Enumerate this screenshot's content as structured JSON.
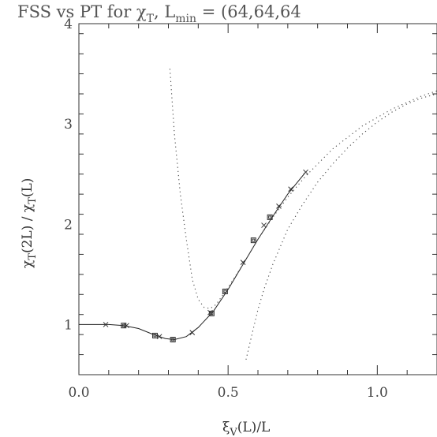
{
  "chart_data": {
    "type": "scatter",
    "title": "FSS vs PT for χ_T, L_min = (64,64,64",
    "title_parts": {
      "prefix": "FSS vs PT for χ",
      "sub1": "T",
      "mid": ", L",
      "sub2": "min",
      "suffix": " = (64,64,64"
    },
    "xlabel_parts": {
      "base": "ξ",
      "sub": "V",
      "rest": "(L)/L"
    },
    "ylabel_parts": {
      "a": "χ",
      "asub": "T",
      "b": "(2L) / χ",
      "bsub": "T",
      "c": "(L)"
    },
    "xlim": [
      0.0,
      1.2
    ],
    "ylim": [
      0.5,
      4.0
    ],
    "x_ticks": [
      {
        "value": 0.0,
        "label": "0.0"
      },
      {
        "value": 0.5,
        "label": "0.5"
      },
      {
        "value": 1.0,
        "label": "1.0"
      }
    ],
    "y_ticks": [
      {
        "value": 1,
        "label": "1"
      },
      {
        "value": 2,
        "label": "2"
      },
      {
        "value": 3,
        "label": "3"
      },
      {
        "value": 4,
        "label": "4"
      }
    ],
    "grid": false,
    "series": [
      {
        "style": "solid",
        "x": [
          0.0,
          0.1,
          0.15,
          0.2,
          0.25,
          0.29,
          0.32,
          0.36,
          0.4,
          0.45,
          0.5,
          0.55,
          0.6,
          0.65,
          0.7,
          0.76
        ],
        "y": [
          1.0,
          1.0,
          0.99,
          0.96,
          0.9,
          0.86,
          0.85,
          0.88,
          0.97,
          1.13,
          1.35,
          1.6,
          1.85,
          2.08,
          2.3,
          2.52
        ]
      },
      {
        "style": "dotted",
        "x": [
          0.305,
          0.32,
          0.34,
          0.36,
          0.38,
          0.4,
          0.42,
          0.44,
          0.46,
          0.5,
          0.55,
          0.6,
          0.65,
          0.7,
          0.76,
          0.85,
          0.95,
          1.05,
          1.15,
          1.2
        ],
        "y": [
          3.55,
          2.9,
          2.3,
          1.85,
          1.45,
          1.25,
          1.17,
          1.16,
          1.2,
          1.37,
          1.6,
          1.85,
          2.07,
          2.27,
          2.48,
          2.75,
          2.98,
          3.15,
          3.28,
          3.33
        ]
      },
      {
        "style": "dotted",
        "x": [
          0.56,
          0.58,
          0.6,
          0.62,
          0.65,
          0.7,
          0.75,
          0.8,
          0.85,
          0.9,
          0.95,
          1.0,
          1.05,
          1.1,
          1.15,
          1.2
        ],
        "y": [
          0.65,
          0.9,
          1.15,
          1.35,
          1.6,
          1.95,
          2.2,
          2.42,
          2.6,
          2.76,
          2.9,
          3.02,
          3.12,
          3.2,
          3.26,
          3.3
        ]
      },
      {
        "marker": "cross",
        "x": [
          0.09,
          0.16,
          0.27,
          0.38,
          0.44,
          0.55,
          0.62,
          0.67,
          0.71,
          0.76
        ],
        "y": [
          1.0,
          0.99,
          0.88,
          0.92,
          1.12,
          1.62,
          1.99,
          2.18,
          2.35,
          2.52
        ]
      },
      {
        "marker": "square",
        "x": [
          0.15,
          0.255,
          0.315,
          0.445,
          0.49,
          0.585,
          0.64
        ],
        "y": [
          0.99,
          0.89,
          0.85,
          1.11,
          1.33,
          1.84,
          2.07
        ]
      }
    ]
  }
}
